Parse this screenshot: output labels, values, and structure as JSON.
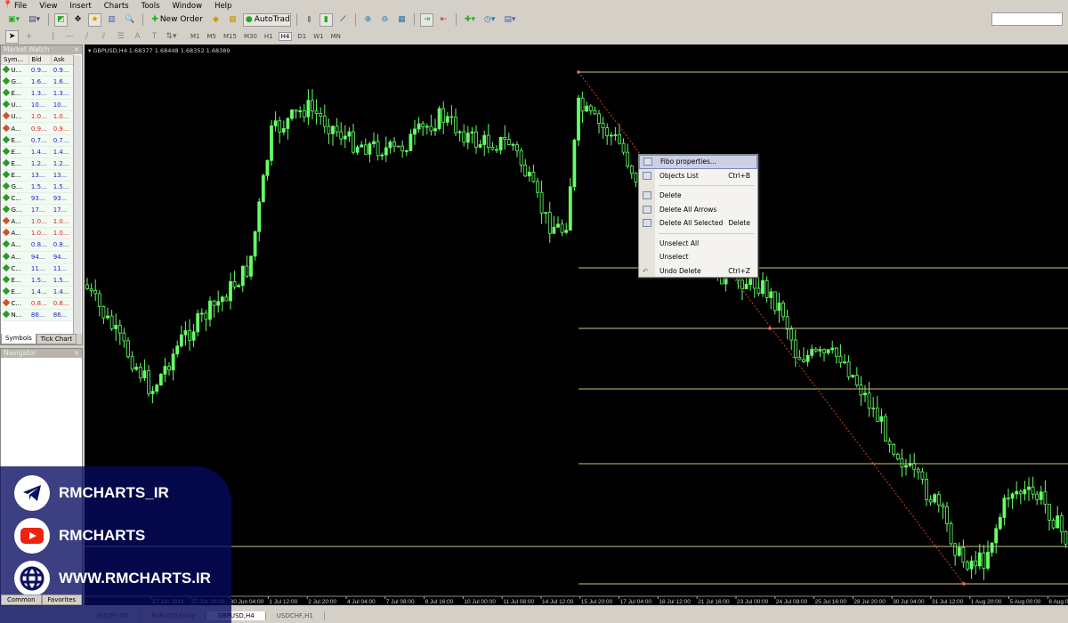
{
  "menu": [
    "File",
    "View",
    "Insert",
    "Charts",
    "Tools",
    "Window",
    "Help"
  ],
  "toolbar": {
    "new_order": "New Order",
    "autotrading": "AutoTrading",
    "timeframes": [
      "M1",
      "M5",
      "M15",
      "M30",
      "H1",
      "H4",
      "D1",
      "W1",
      "MN"
    ],
    "active_timeframe": "H4"
  },
  "market_watch": {
    "title": "Market Watch",
    "headers": [
      "Sym...",
      "Bid",
      "Ask"
    ],
    "rows": [
      {
        "s": "U...",
        "b": "0.9...",
        "a": "0.9...",
        "dir": "up"
      },
      {
        "s": "G...",
        "b": "1.6...",
        "a": "1.6...",
        "dir": "up"
      },
      {
        "s": "E...",
        "b": "1.3...",
        "a": "1.3...",
        "dir": "up"
      },
      {
        "s": "U...",
        "b": "10...",
        "a": "10...",
        "dir": "up"
      },
      {
        "s": "U...",
        "b": "1.0...",
        "a": "1.0...",
        "dir": "down"
      },
      {
        "s": "A...",
        "b": "0.9...",
        "a": "0.9...",
        "dir": "down"
      },
      {
        "s": "E...",
        "b": "0.7...",
        "a": "0.7...",
        "dir": "up"
      },
      {
        "s": "E...",
        "b": "1.4...",
        "a": "1.4...",
        "dir": "up"
      },
      {
        "s": "E...",
        "b": "1.2...",
        "a": "1.2...",
        "dir": "up"
      },
      {
        "s": "E...",
        "b": "13...",
        "a": "13...",
        "dir": "up"
      },
      {
        "s": "G...",
        "b": "1.5...",
        "a": "1.5...",
        "dir": "up"
      },
      {
        "s": "C...",
        "b": "93...",
        "a": "93...",
        "dir": "up"
      },
      {
        "s": "G...",
        "b": "17...",
        "a": "17...",
        "dir": "up"
      },
      {
        "s": "A...",
        "b": "1.0...",
        "a": "1.0...",
        "dir": "down"
      },
      {
        "s": "A...",
        "b": "1.0...",
        "a": "1.0...",
        "dir": "down"
      },
      {
        "s": "A...",
        "b": "0.8...",
        "a": "0.8...",
        "dir": "up"
      },
      {
        "s": "A...",
        "b": "94...",
        "a": "94...",
        "dir": "up"
      },
      {
        "s": "C...",
        "b": "11...",
        "a": "11...",
        "dir": "up"
      },
      {
        "s": "E...",
        "b": "1.5...",
        "a": "1.5...",
        "dir": "up"
      },
      {
        "s": "E...",
        "b": "1.4...",
        "a": "1.4...",
        "dir": "up"
      },
      {
        "s": "C...",
        "b": "0.8...",
        "a": "0.8...",
        "dir": "down"
      },
      {
        "s": "N...",
        "b": "86...",
        "a": "86...",
        "dir": "up"
      }
    ],
    "tabs": [
      "Symbols",
      "Tick Chart"
    ],
    "up_color": "#2222cc",
    "down_color": "#dd2222"
  },
  "navigator": {
    "title": "Navigator",
    "tabs": [
      "Common",
      "Favorites"
    ]
  },
  "chart": {
    "title": "GBPUSD,H4  1.68377 1.68448 1.68352 1.68389",
    "bull_color": "#66ff66",
    "fibo_color": "#c8c87a",
    "time_labels": [
      "27 Jun 2014",
      "27 Jun 20:00",
      "30 Jun 04:00",
      "1 Jul 12:00",
      "2 Jul 20:00",
      "4 Jul 04:00",
      "7 Jul 08:00",
      "8 Jul 16:00",
      "10 Jul 00:00",
      "11 Jul 08:00",
      "14 Jul 12:00",
      "15 Jul 20:00",
      "17 Jul 04:00",
      "18 Jul 12:00",
      "21 Jul 16:00",
      "23 Jul 00:00",
      "24 Jul 08:00",
      "25 Jul 16:00",
      "28 Jul 20:00",
      "30 Jul 04:00",
      "31 Jul 12:00",
      "1 Aug 20:00",
      "5 Aug 00:00",
      "6 Aug 0"
    ]
  },
  "context_menu": [
    {
      "label": "Fibo properties...",
      "shortcut": "",
      "icon": "fibo-properties-icon",
      "hl": true
    },
    {
      "label": "Objects List",
      "shortcut": "Ctrl+B",
      "icon": "objects-list-icon"
    },
    {
      "sep": true
    },
    {
      "label": "Delete",
      "shortcut": "",
      "icon": "delete-icon"
    },
    {
      "label": "Delete All Arrows",
      "shortcut": "",
      "icon": "delete-arrows-icon"
    },
    {
      "label": "Delete All Selected",
      "shortcut": "Delete",
      "icon": "delete-selected-icon"
    },
    {
      "sep": true
    },
    {
      "label": "Unselect All",
      "shortcut": ""
    },
    {
      "label": "Unselect",
      "shortcut": ""
    },
    {
      "label": "Undo Delete",
      "shortcut": "Ctrl+Z",
      "icon": "undo-icon"
    }
  ],
  "chart_tabs": [
    "USDJPY,M5",
    "EURUSD,Daily",
    "GBPUSD,H4",
    "USDCHF,H1"
  ],
  "active_chart_tab": "GBPUSD,H4",
  "overlay": {
    "telegram": "RMCHARTS_IR",
    "youtube": "RMCHARTS",
    "website": "WWW.RMCHARTS.IR"
  }
}
